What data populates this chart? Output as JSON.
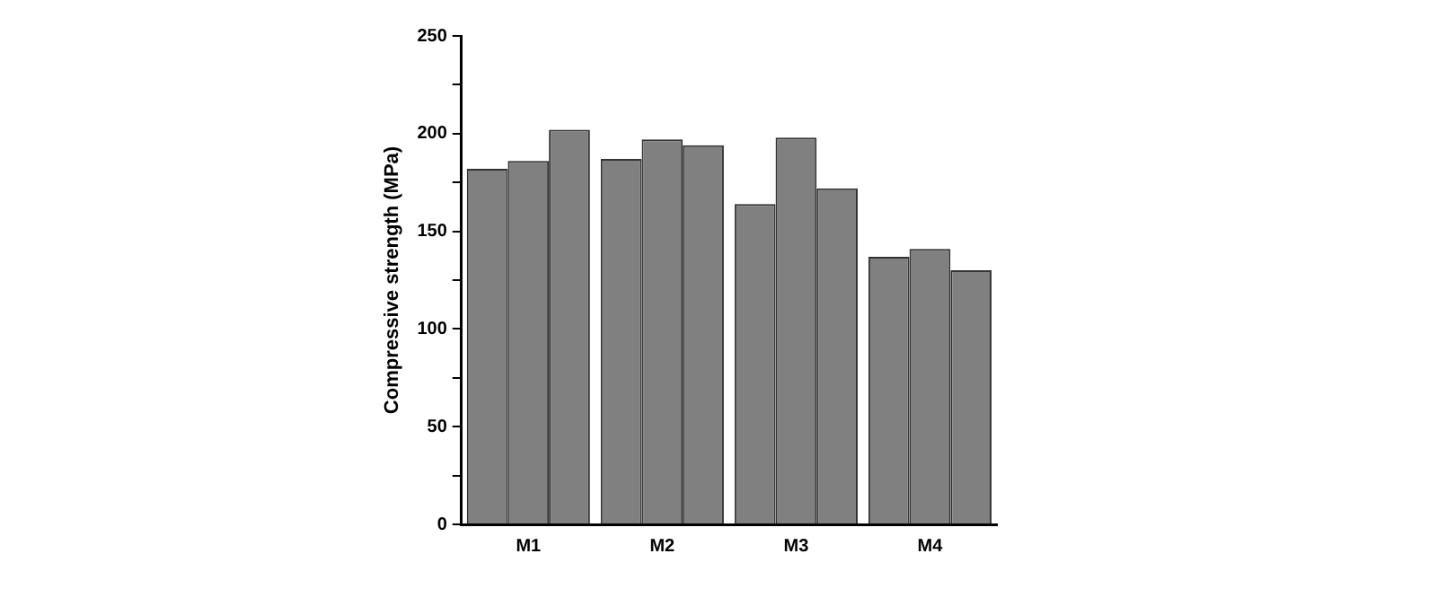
{
  "chart_data": {
    "type": "bar",
    "ylabel": "Compressive strength (MPa)",
    "categories": [
      "M1",
      "M2",
      "M3",
      "M4"
    ],
    "series": [
      {
        "color": "#808080",
        "values": [
          182,
          187,
          164,
          137
        ]
      },
      {
        "color": "#808080",
        "values": [
          186,
          197,
          198,
          141
        ]
      },
      {
        "color": "#808080",
        "values": [
          202,
          194,
          172,
          130
        ]
      }
    ],
    "ylim": [
      0,
      250
    ],
    "yticks": [
      0,
      {
        "value": 25,
        "label": null
      },
      50,
      {
        "value": 75,
        "label": null
      },
      100,
      {
        "value": 125,
        "label": null
      },
      150,
      {
        "value": 175,
        "label": null
      },
      200,
      {
        "value": 225,
        "label": null
      },
      250
    ],
    "grid": false,
    "legend": false
  }
}
